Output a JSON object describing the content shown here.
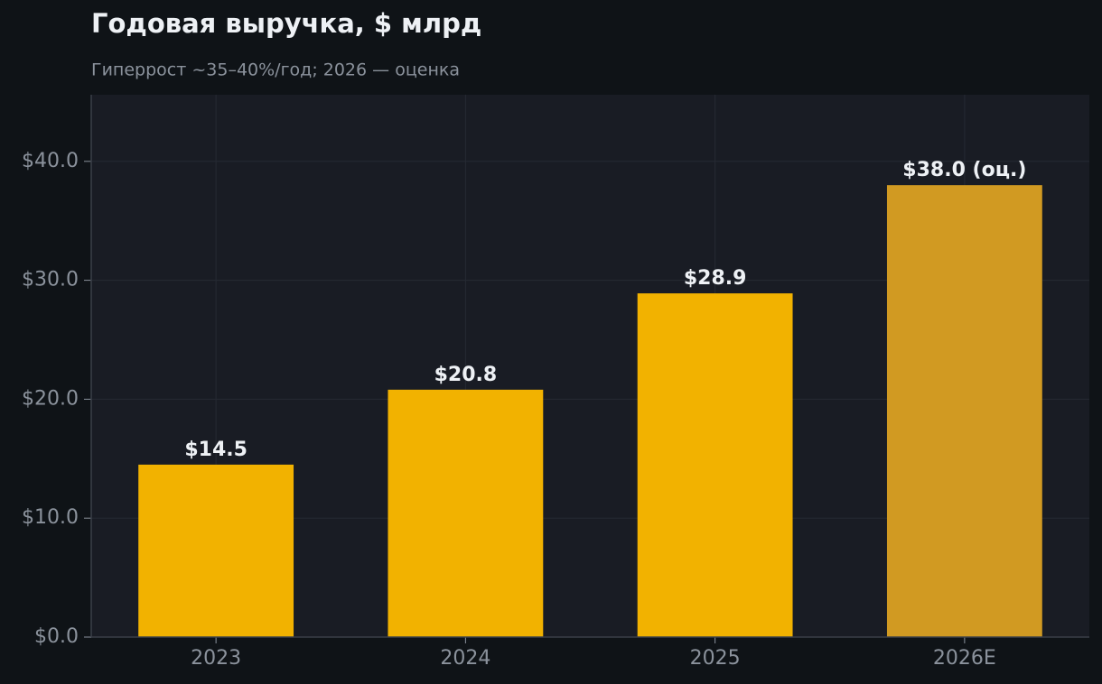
{
  "chart_data": {
    "type": "bar",
    "title": "Годовая выручка, $ млрд",
    "subtitle": "Гиперрост ~35–40%/год; 2026 — оценка",
    "categories": [
      "2023",
      "2024",
      "2025",
      "2026E"
    ],
    "values": [
      14.5,
      20.8,
      28.9,
      38.0
    ],
    "value_labels": [
      "$14.5",
      "$20.8",
      "$28.9",
      "$38.0 (оц.)"
    ],
    "colors": [
      "#f2b200",
      "#f2b200",
      "#f2b200",
      "#d19a22"
    ],
    "ylim": [
      0,
      45.6
    ],
    "yticks": [
      {
        "value": 0,
        "label": "$0.0"
      },
      {
        "value": 10,
        "label": "$10.0"
      },
      {
        "value": 20,
        "label": "$20.0"
      },
      {
        "value": 30,
        "label": "$30.0"
      },
      {
        "value": 40,
        "label": "$40.0"
      }
    ],
    "grid": true
  }
}
